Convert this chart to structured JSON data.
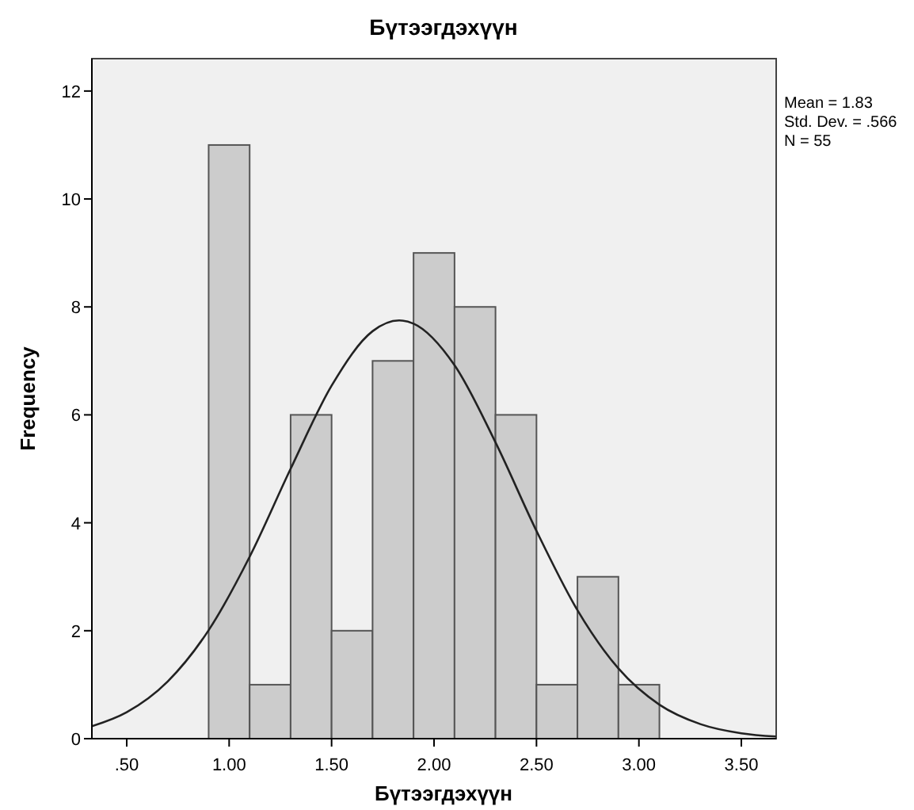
{
  "chart_data": {
    "type": "histogram",
    "title": "Бүтээгдэхүүн",
    "xlabel": "Бүтээгдэхүүн",
    "ylabel": "Frequency",
    "annotations": [
      "Mean = 1.83",
      "Std. Dev. = .566",
      "N = 55"
    ],
    "xlim": [
      0.33,
      3.67
    ],
    "xticks": [
      {
        "value": 0.5,
        "label": ".50"
      },
      {
        "value": 1,
        "label": "1.00"
      },
      {
        "value": 1.5,
        "label": "1.50"
      },
      {
        "value": 2,
        "label": "2.00"
      },
      {
        "value": 2.5,
        "label": "2.50"
      },
      {
        "value": 3,
        "label": "3.00"
      },
      {
        "value": 3.5,
        "label": "3.50"
      }
    ],
    "ylim": [
      0,
      12.6
    ],
    "yticks": [
      0,
      2,
      4,
      6,
      8,
      10,
      12
    ],
    "grid": false,
    "series": [
      {
        "color": "#cccccc",
        "bins": [
          0.9,
          1.1,
          1.3,
          1.5,
          1.7,
          1.9,
          2.1,
          2.3,
          2.5,
          2.7,
          2.9,
          3.1
        ],
        "values": [
          11,
          1,
          6,
          2,
          7,
          9,
          8,
          6,
          1,
          3,
          1
        ]
      },
      {
        "type": "line",
        "color": "#222222",
        "x": [
          0.33,
          0.5,
          0.7,
          0.9,
          1.1,
          1.3,
          1.5,
          1.7,
          1.83,
          1.9,
          2.1,
          2.3,
          2.5,
          2.7,
          2.9,
          3.1,
          3.3,
          3.5,
          3.67
        ],
        "values": [
          0.23,
          0.49,
          1.06,
          2.01,
          3.37,
          5.0,
          6.54,
          7.55,
          7.75,
          7.69,
          6.92,
          5.49,
          3.85,
          2.38,
          1.3,
          0.63,
          0.27,
          0.1,
          0.04
        ]
      }
    ]
  }
}
